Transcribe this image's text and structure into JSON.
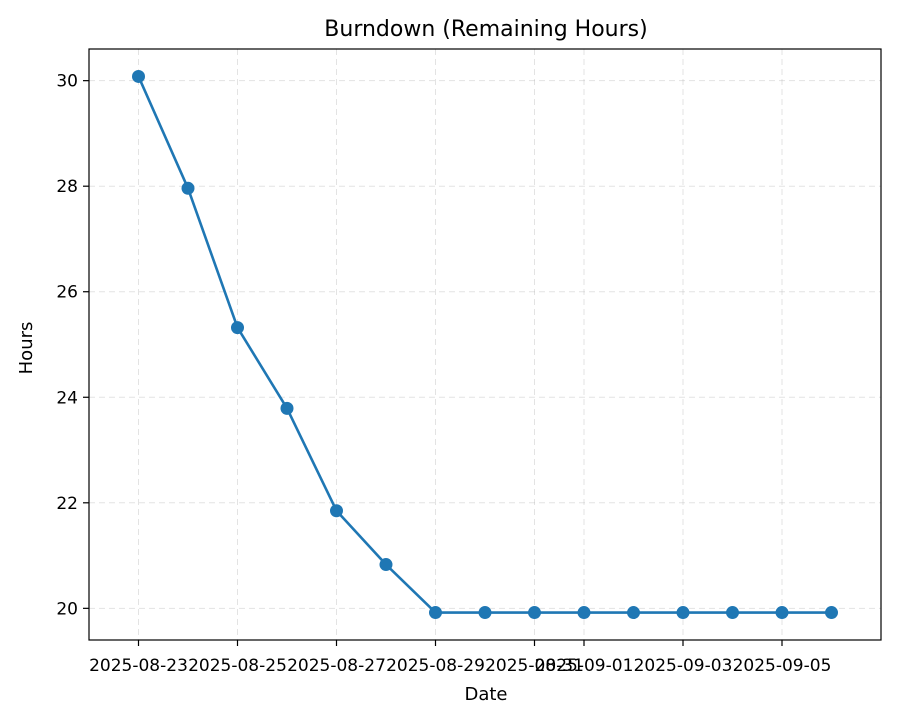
{
  "chart_data": {
    "type": "line",
    "title": "Burndown (Remaining Hours)",
    "xlabel": "Date",
    "ylabel": "Hours",
    "x": [
      "2025-08-23",
      "2025-08-24",
      "2025-08-25",
      "2025-08-26",
      "2025-08-27",
      "2025-08-28",
      "2025-08-29",
      "2025-08-30",
      "2025-08-31",
      "2025-09-01",
      "2025-09-02",
      "2025-09-03",
      "2025-09-04",
      "2025-09-05",
      "2025-09-06"
    ],
    "series": [
      {
        "values": [
          30.08,
          27.96,
          25.32,
          23.79,
          21.85,
          20.83,
          19.92,
          19.92,
          19.92,
          19.92,
          19.92,
          19.92,
          19.92,
          19.92,
          19.92
        ]
      }
    ],
    "xticks": [
      "2025-08-23",
      "2025-08-25",
      "2025-08-27",
      "2025-08-29",
      "2025-08-31",
      "2025-09-01",
      "2025-09-03",
      "2025-09-05"
    ],
    "yticks": [
      20,
      22,
      24,
      26,
      28,
      30
    ],
    "xlim": [
      "2025-08-22",
      "2025-09-07"
    ],
    "ylim": [
      19.4,
      30.6
    ],
    "grid": true,
    "colors": {
      "series": "#1f77b4"
    }
  }
}
